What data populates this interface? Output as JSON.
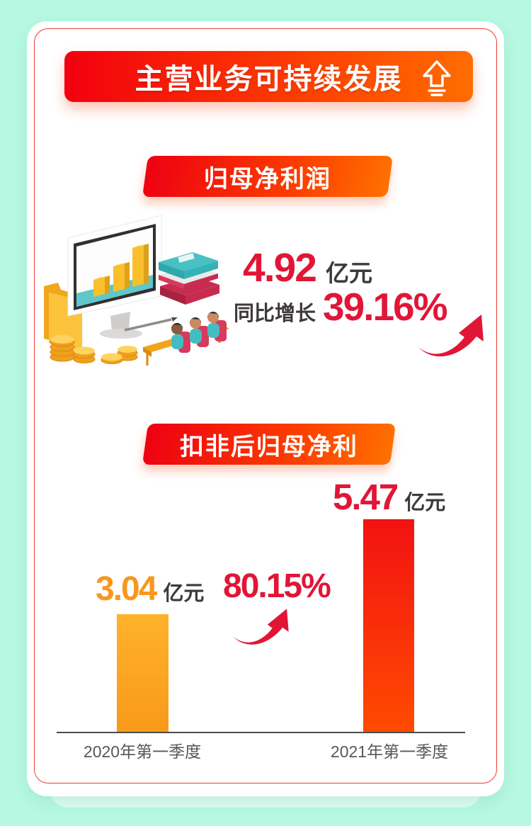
{
  "header": {
    "title": "主营业务可持续发展",
    "icon": "up-arrow-icon"
  },
  "net_profit_section": {
    "banner_label": "归母净利润",
    "value": "4.92",
    "unit": "亿元",
    "growth_prefix": "同比增长",
    "growth_value": "39.16%",
    "illustration": "isometric-monitor-bar-chart-books-coins-students"
  },
  "deducted_profit_section": {
    "banner_label": "扣非后归母净利",
    "growth_value": "80.15%",
    "unit_left": "亿元",
    "unit_right": "亿元"
  },
  "chart_data": {
    "type": "bar",
    "title": "扣非后归母净利",
    "categories": [
      "2020年第一季度",
      "2021年第一季度"
    ],
    "values": [
      3.04,
      5.47
    ],
    "unit": "亿元",
    "growth_annotation": "80.15%",
    "ylim": [
      0,
      6
    ],
    "grid": false,
    "legend": false,
    "bar_colors": [
      [
        "#ffb22b",
        "#f8991b"
      ],
      [
        "#f21212",
        "#ff4b00"
      ]
    ],
    "value_label_colors": [
      "#f8971d",
      "#e11637"
    ]
  },
  "colors": {
    "page_background": "#b6f8e2",
    "card_background": "#ffffff",
    "card_border_red": "#ef3a34",
    "banner_gradient_start": "#f3000f",
    "banner_gradient_end": "#ff6d00",
    "accent_red_text": "#e11637",
    "dark_text": "#3e3a39",
    "axis_label_gray": "#595757"
  }
}
